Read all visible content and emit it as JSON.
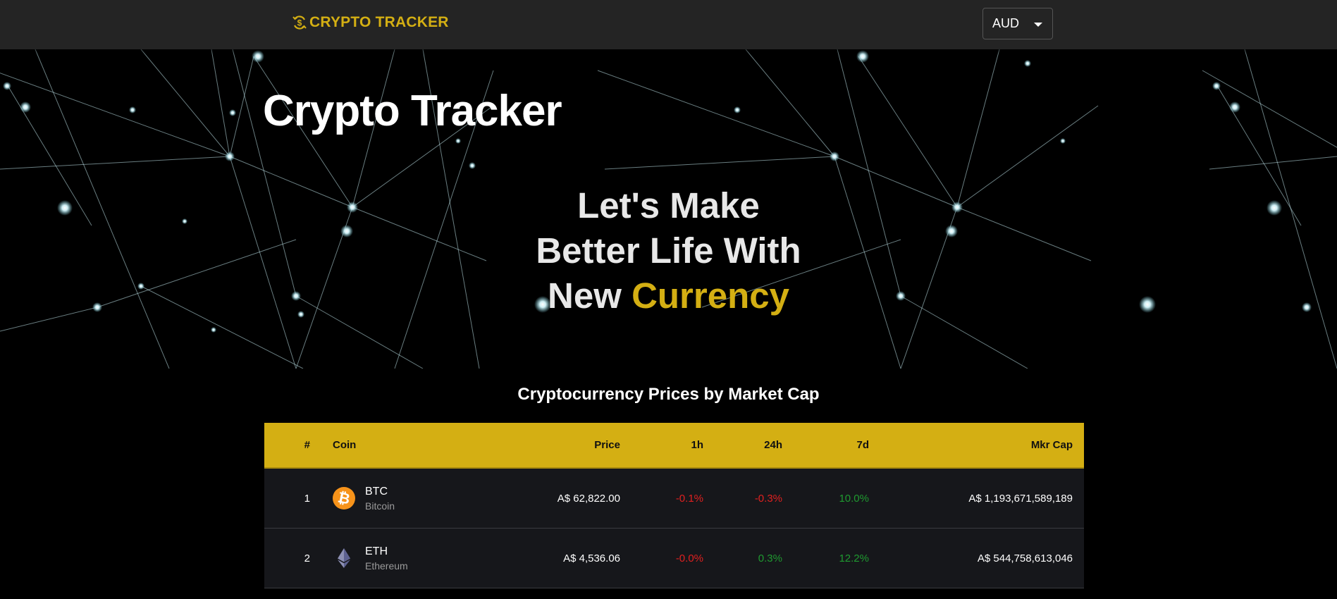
{
  "nav": {
    "brand": "CRYPTO TRACKER",
    "currency": "AUD"
  },
  "hero": {
    "title": "Crypto Tracker",
    "tagline_line1": "Let's Make",
    "tagline_line2": "Better Life With",
    "tagline_line3_a": "New ",
    "tagline_line3_b": "Currency"
  },
  "table": {
    "title": "Cryptocurrency Prices by Market Cap",
    "headers": {
      "rank": "#",
      "coin": "Coin",
      "price": "Price",
      "h1": "1h",
      "h24": "24h",
      "d7": "7d",
      "mcap": "Mkr Cap"
    },
    "rows": [
      {
        "rank": "1",
        "symbol": "BTC",
        "name": "Bitcoin",
        "icon": "bitcoin-icon",
        "price": "A$ 62,822.00",
        "h1": "-0.1%",
        "h24": "-0.3%",
        "d7": "10.0%",
        "mcap": "A$ 1,193,671,589,189"
      },
      {
        "rank": "2",
        "symbol": "ETH",
        "name": "Ethereum",
        "icon": "ethereum-icon",
        "price": "A$ 4,536.06",
        "h1": "-0.0%",
        "h24": "0.3%",
        "d7": "12.2%",
        "mcap": "A$ 544,758,613,046"
      }
    ]
  },
  "colors": {
    "accent": "#d4af13",
    "navbar": "#242424",
    "row_bg": "#16171b",
    "negative": "#e02020",
    "positive": "#1f9a30"
  }
}
